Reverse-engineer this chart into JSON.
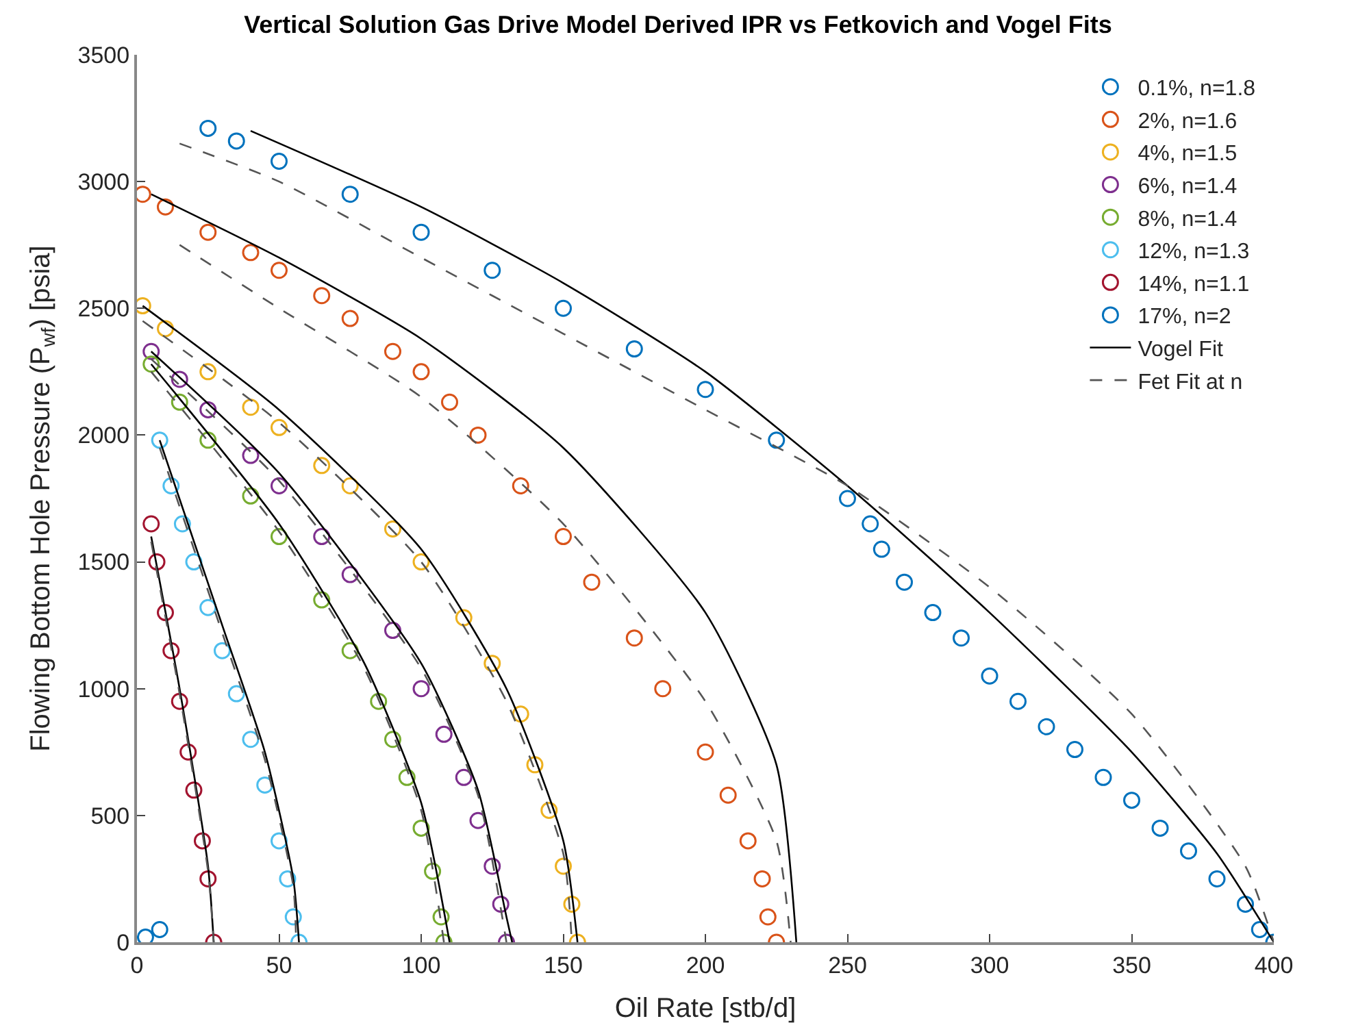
{
  "chart_data": {
    "type": "scatter",
    "title": "Vertical Solution Gas Drive Model Derived IPR vs Fetkovich and Vogel Fits",
    "xlabel": "Oil Rate [stb/d]",
    "ylabel": "Flowing Bottom Hole Pressure (P$_{wf}$) [psia]",
    "xlim": [
      0,
      400
    ],
    "xticks": [
      0,
      50,
      100,
      150,
      200,
      250,
      300,
      350,
      400
    ],
    "ylim": [
      0,
      3500
    ],
    "yticks": [
      0,
      500,
      1000,
      1500,
      2000,
      2500,
      3000,
      3500
    ],
    "legend": "top right",
    "marker": "circle",
    "series": [
      {
        "name": "0.1%, n=1.8",
        "color": "#0072bd",
        "x": [
          25,
          35,
          50,
          75,
          100,
          125,
          150,
          175,
          200,
          225,
          250,
          258,
          262,
          270,
          280,
          290,
          300,
          310,
          320,
          330,
          340,
          350,
          360,
          370,
          380,
          390,
          395,
          400
        ],
        "values": [
          3210,
          3160,
          3080,
          2950,
          2800,
          2650,
          2500,
          2340,
          2180,
          1980,
          1750,
          1650,
          1550,
          1420,
          1300,
          1200,
          1050,
          950,
          850,
          760,
          650,
          560,
          450,
          360,
          250,
          150,
          50,
          0
        ]
      },
      {
        "name": "2%, n=1.6",
        "color": "#d95319",
        "x": [
          2,
          10,
          25,
          40,
          50,
          65,
          75,
          90,
          100,
          110,
          120,
          135,
          150,
          160,
          175,
          185,
          200,
          208,
          215,
          220,
          222,
          225
        ],
        "values": [
          2950,
          2900,
          2800,
          2720,
          2650,
          2550,
          2460,
          2330,
          2250,
          2130,
          2000,
          1800,
          1600,
          1420,
          1200,
          1000,
          750,
          580,
          400,
          250,
          100,
          0
        ]
      },
      {
        "name": "4%, n=1.5",
        "color": "#edb120",
        "x": [
          2,
          10,
          25,
          40,
          50,
          65,
          75,
          90,
          100,
          115,
          125,
          135,
          140,
          145,
          150,
          153,
          155
        ],
        "values": [
          2510,
          2420,
          2250,
          2110,
          2030,
          1880,
          1800,
          1630,
          1500,
          1280,
          1100,
          900,
          700,
          520,
          300,
          150,
          0
        ]
      },
      {
        "name": "6%, n=1.4",
        "color": "#7e2f8e",
        "x": [
          5,
          15,
          25,
          40,
          50,
          65,
          75,
          90,
          100,
          108,
          115,
          120,
          125,
          128,
          130
        ],
        "values": [
          2330,
          2220,
          2100,
          1920,
          1800,
          1600,
          1450,
          1230,
          1000,
          820,
          650,
          480,
          300,
          150,
          0
        ]
      },
      {
        "name": "8%, n=1.4",
        "color": "#77ac30",
        "x": [
          5,
          15,
          25,
          40,
          50,
          65,
          75,
          85,
          90,
          95,
          100,
          104,
          107,
          108
        ],
        "values": [
          2280,
          2130,
          1980,
          1760,
          1600,
          1350,
          1150,
          950,
          800,
          650,
          450,
          280,
          100,
          0
        ]
      },
      {
        "name": "12%, n=1.3",
        "color": "#4dbeee",
        "x": [
          8,
          12,
          16,
          20,
          25,
          30,
          35,
          40,
          45,
          50,
          53,
          55,
          57
        ],
        "values": [
          1980,
          1800,
          1650,
          1500,
          1320,
          1150,
          980,
          800,
          620,
          400,
          250,
          100,
          0
        ]
      },
      {
        "name": "14%, n=1.1",
        "color": "#a2142f",
        "x": [
          5,
          7,
          10,
          12,
          15,
          18,
          20,
          23,
          25,
          27
        ],
        "values": [
          1650,
          1500,
          1300,
          1150,
          950,
          750,
          600,
          400,
          250,
          0
        ]
      },
      {
        "name": "17%, n=2",
        "color": "#0072bd",
        "x": [
          3,
          8
        ],
        "values": [
          20,
          50
        ]
      },
      {
        "name": "Vogel Fit",
        "type": "line",
        "line_style": "solid",
        "marker": "none",
        "color": "#000000",
        "x": [
          40,
          100,
          150,
          200,
          250,
          300,
          350,
          380,
          400
        ],
        "values": [
          3200,
          2900,
          2600,
          2250,
          1800,
          1300,
          750,
          350,
          0
        ]
      },
      {
        "name": "Fet Fit at n",
        "type": "line",
        "line_style": "dashed",
        "marker": "none",
        "color": "#555555",
        "x": [
          15,
          50,
          100,
          150,
          200,
          250,
          300,
          350,
          390,
          400
        ],
        "values": [
          3150,
          3000,
          2700,
          2400,
          2100,
          1800,
          1400,
          900,
          300,
          0
        ]
      },
      {
        "type": "line",
        "line_style": "solid",
        "marker": "none",
        "color": "#000000",
        "x": [
          5,
          50,
          100,
          150,
          200,
          225,
          232
        ],
        "values": [
          2950,
          2700,
          2380,
          1950,
          1300,
          700,
          0
        ]
      },
      {
        "type": "line",
        "line_style": "dashed",
        "marker": "none",
        "color": "#555555",
        "x": [
          15,
          50,
          100,
          150,
          200,
          225,
          230
        ],
        "values": [
          2750,
          2500,
          2150,
          1650,
          950,
          400,
          0
        ]
      },
      {
        "type": "line",
        "line_style": "solid",
        "marker": "none",
        "color": "#000000",
        "x": [
          2,
          50,
          100,
          130,
          150,
          155
        ],
        "values": [
          2510,
          2100,
          1550,
          1000,
          400,
          0
        ]
      },
      {
        "type": "line",
        "line_style": "dashed",
        "marker": "none",
        "color": "#555555",
        "x": [
          2,
          50,
          100,
          130,
          150,
          153
        ],
        "values": [
          2450,
          2050,
          1500,
          950,
          350,
          0
        ]
      },
      {
        "type": "line",
        "line_style": "solid",
        "marker": "none",
        "color": "#000000",
        "x": [
          5,
          50,
          100,
          120,
          130,
          132
        ],
        "values": [
          2330,
          1850,
          1100,
          600,
          100,
          0
        ]
      },
      {
        "type": "line",
        "line_style": "dashed",
        "marker": "none",
        "color": "#555555",
        "x": [
          5,
          50,
          100,
          120,
          130
        ],
        "values": [
          2300,
          1820,
          1080,
          580,
          0
        ]
      },
      {
        "type": "line",
        "line_style": "solid",
        "marker": "none",
        "color": "#000000",
        "x": [
          5,
          50,
          80,
          100,
          110
        ],
        "values": [
          2280,
          1650,
          1100,
          550,
          0
        ]
      },
      {
        "type": "line",
        "line_style": "dashed",
        "marker": "none",
        "color": "#555555",
        "x": [
          5,
          50,
          80,
          100,
          108
        ],
        "values": [
          2250,
          1620,
          1080,
          520,
          0
        ]
      },
      {
        "type": "line",
        "line_style": "solid",
        "marker": "none",
        "color": "#000000",
        "x": [
          8,
          30,
          45,
          55,
          57
        ],
        "values": [
          1980,
          1250,
          750,
          250,
          0
        ]
      },
      {
        "type": "line",
        "line_style": "dashed",
        "marker": "none",
        "color": "#555555",
        "x": [
          8,
          30,
          45,
          55,
          56
        ],
        "values": [
          1950,
          1220,
          720,
          220,
          0
        ]
      },
      {
        "type": "line",
        "line_style": "solid",
        "marker": "none",
        "color": "#000000",
        "x": [
          5,
          15,
          25,
          27
        ],
        "values": [
          1600,
          1000,
          300,
          0
        ]
      },
      {
        "type": "line",
        "line_style": "dashed",
        "marker": "none",
        "color": "#555555",
        "x": [
          5,
          15,
          25,
          27
        ],
        "values": [
          1580,
          980,
          280,
          0
        ]
      }
    ]
  }
}
